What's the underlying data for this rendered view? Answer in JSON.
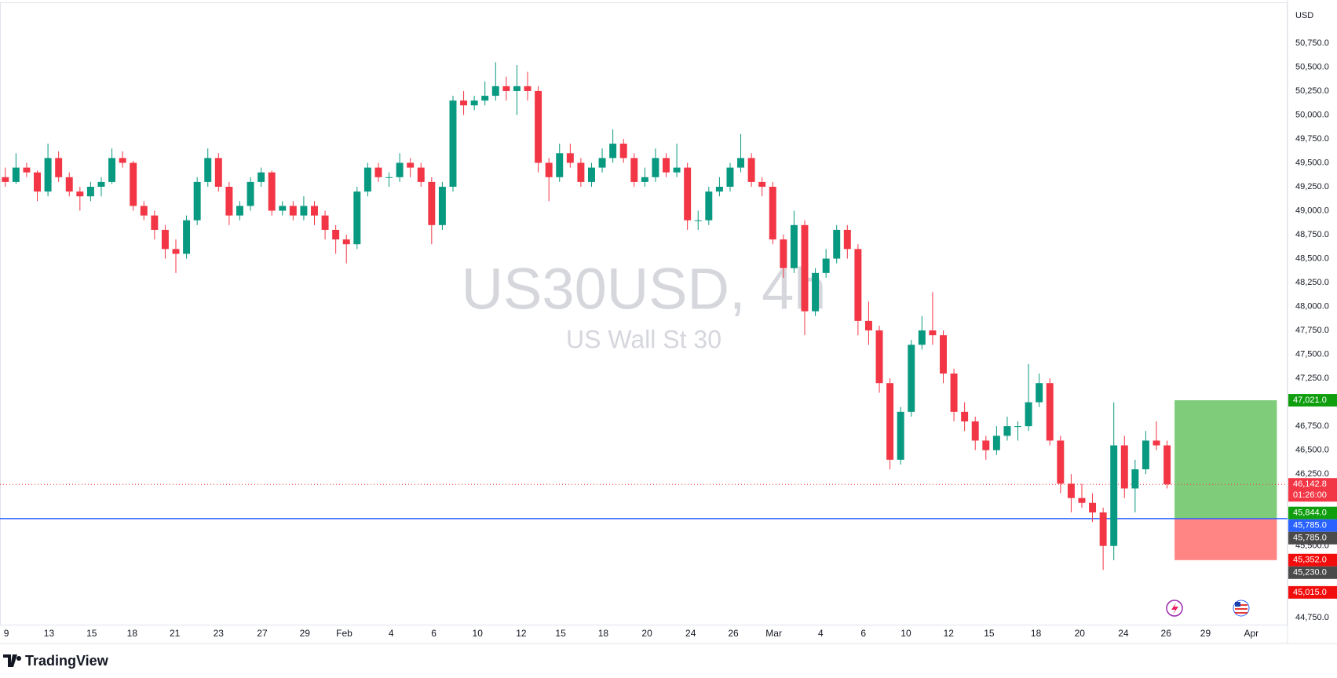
{
  "chart_data": {
    "type": "candlestick",
    "title": "US30USD, 4h",
    "subtitle": "US Wall St 30",
    "currency": "USD",
    "up_color": "#089981",
    "down_color": "#f23645",
    "xlim": [
      -0.5,
      120.3
    ],
    "xticks": [
      {
        "value": 0.1,
        "label": "9"
      },
      {
        "value": 4.1,
        "label": "13"
      },
      {
        "value": 8.1,
        "label": "15"
      },
      {
        "value": 11.9,
        "label": "18"
      },
      {
        "value": 15.9,
        "label": "21"
      },
      {
        "value": 20,
        "label": "23"
      },
      {
        "value": 24.1,
        "label": "27"
      },
      {
        "value": 28.1,
        "label": "29"
      },
      {
        "value": 31.8,
        "label": "Feb"
      },
      {
        "value": 36.2,
        "label": "4"
      },
      {
        "value": 40.2,
        "label": "6"
      },
      {
        "value": 44.3,
        "label": "10"
      },
      {
        "value": 48.4,
        "label": "12"
      },
      {
        "value": 52.1,
        "label": "15"
      },
      {
        "value": 56.1,
        "label": "18"
      },
      {
        "value": 60.2,
        "label": "20"
      },
      {
        "value": 64.3,
        "label": "24"
      },
      {
        "value": 68.3,
        "label": "26"
      },
      {
        "value": 72.1,
        "label": "Mar"
      },
      {
        "value": 76.5,
        "label": "4"
      },
      {
        "value": 80.5,
        "label": "6"
      },
      {
        "value": 84.5,
        "label": "10"
      },
      {
        "value": 88.5,
        "label": "12"
      },
      {
        "value": 92.3,
        "label": "15"
      },
      {
        "value": 96.7,
        "label": "18"
      },
      {
        "value": 100.8,
        "label": "20"
      },
      {
        "value": 104.9,
        "label": "24"
      },
      {
        "value": 108.9,
        "label": "26"
      },
      {
        "value": 112.6,
        "label": "29"
      },
      {
        "value": 116.9,
        "label": "Apr"
      }
    ],
    "ylim": [
      44670,
      51200
    ],
    "yticks": [
      {
        "value": 50750,
        "label": "50,750.0"
      },
      {
        "value": 50500,
        "label": "50,500.0"
      },
      {
        "value": 50250,
        "label": "50,250.0"
      },
      {
        "value": 50000,
        "label": "50,000.0"
      },
      {
        "value": 49750,
        "label": "49,750.0"
      },
      {
        "value": 49500,
        "label": "49,500.0"
      },
      {
        "value": 49250,
        "label": "49,250.0"
      },
      {
        "value": 49000,
        "label": "49,000.0"
      },
      {
        "value": 48750,
        "label": "48,750.0"
      },
      {
        "value": 48500,
        "label": "48,500.0"
      },
      {
        "value": 48250,
        "label": "48,250.0"
      },
      {
        "value": 48000,
        "label": "48,000.0"
      },
      {
        "value": 47750,
        "label": "47,750.0"
      },
      {
        "value": 47500,
        "label": "47,500.0"
      },
      {
        "value": 47250,
        "label": "47,250.0"
      },
      {
        "value": 46750,
        "label": "46,750.0"
      },
      {
        "value": 46500,
        "label": "46,500.0"
      },
      {
        "value": 46250,
        "label": "46,250.0"
      },
      {
        "value": 45500,
        "label": "45,500.0"
      },
      {
        "value": 44750,
        "label": "44,750.0"
      }
    ],
    "ohlc": [
      [
        49350,
        49450,
        49250,
        49300
      ],
      [
        49300,
        49600,
        49280,
        49450
      ],
      [
        49450,
        49500,
        49350,
        49400
      ],
      [
        49400,
        49420,
        49100,
        49200
      ],
      [
        49200,
        49700,
        49150,
        49550
      ],
      [
        49550,
        49620,
        49300,
        49350
      ],
      [
        49350,
        49400,
        49150,
        49200
      ],
      [
        49200,
        49250,
        49000,
        49150
      ],
      [
        49150,
        49300,
        49100,
        49250
      ],
      [
        49250,
        49350,
        49150,
        49300
      ],
      [
        49300,
        49650,
        49280,
        49550
      ],
      [
        49550,
        49620,
        49450,
        49500
      ],
      [
        49500,
        49520,
        49000,
        49050
      ],
      [
        49050,
        49100,
        48900,
        48950
      ],
      [
        48950,
        49000,
        48700,
        48800
      ],
      [
        48800,
        48850,
        48500,
        48600
      ],
      [
        48600,
        48700,
        48350,
        48550
      ],
      [
        48550,
        48950,
        48500,
        48900
      ],
      [
        48900,
        49350,
        48850,
        49300
      ],
      [
        49300,
        49650,
        49250,
        49550
      ],
      [
        49550,
        49600,
        49200,
        49250
      ],
      [
        49250,
        49300,
        48850,
        48950
      ],
      [
        48950,
        49100,
        48900,
        49050
      ],
      [
        49050,
        49350,
        49000,
        49300
      ],
      [
        49300,
        49450,
        49250,
        49400
      ],
      [
        49400,
        49420,
        48950,
        49000
      ],
      [
        49000,
        49100,
        48950,
        49050
      ],
      [
        49050,
        49100,
        48900,
        48950
      ],
      [
        48950,
        49150,
        48900,
        49050
      ],
      [
        49050,
        49100,
        48850,
        48950
      ],
      [
        48950,
        49000,
        48700,
        48800
      ],
      [
        48800,
        48850,
        48550,
        48700
      ],
      [
        48700,
        48750,
        48450,
        48650
      ],
      [
        48650,
        49250,
        48600,
        49200
      ],
      [
        49200,
        49500,
        49150,
        49450
      ],
      [
        49450,
        49500,
        49300,
        49350
      ],
      [
        49350,
        49400,
        49250,
        49350
      ],
      [
        49350,
        49600,
        49300,
        49500
      ],
      [
        49500,
        49550,
        49350,
        49450
      ],
      [
        49450,
        49500,
        49250,
        49300
      ],
      [
        49300,
        49350,
        48650,
        48850
      ],
      [
        48850,
        49300,
        48800,
        49250
      ],
      [
        49250,
        50200,
        49200,
        50150
      ],
      [
        50150,
        50250,
        50000,
        50100
      ],
      [
        50100,
        50200,
        50050,
        50150
      ],
      [
        50150,
        50350,
        50100,
        50200
      ],
      [
        50200,
        50550,
        50150,
        50300
      ],
      [
        50300,
        50400,
        50150,
        50250
      ],
      [
        50250,
        50520,
        50000,
        50300
      ],
      [
        50300,
        50450,
        50150,
        50250
      ],
      [
        50250,
        50300,
        49400,
        49500
      ],
      [
        49500,
        49550,
        49100,
        49350
      ],
      [
        49350,
        49700,
        49300,
        49600
      ],
      [
        49600,
        49700,
        49450,
        49500
      ],
      [
        49500,
        49550,
        49250,
        49300
      ],
      [
        49300,
        49500,
        49250,
        49450
      ],
      [
        49450,
        49650,
        49400,
        49550
      ],
      [
        49550,
        49850,
        49500,
        49700
      ],
      [
        49700,
        49750,
        49500,
        49550
      ],
      [
        49550,
        49600,
        49250,
        49300
      ],
      [
        49300,
        49450,
        49250,
        49350
      ],
      [
        49350,
        49650,
        49300,
        49550
      ],
      [
        49550,
        49600,
        49350,
        49400
      ],
      [
        49400,
        49700,
        49350,
        49450
      ],
      [
        49450,
        49500,
        48800,
        48900
      ],
      [
        48900,
        49000,
        48800,
        48900
      ],
      [
        48900,
        49250,
        48850,
        49200
      ],
      [
        49200,
        49350,
        49150,
        49250
      ],
      [
        49250,
        49500,
        49200,
        49450
      ],
      [
        49450,
        49800,
        49400,
        49550
      ],
      [
        49550,
        49600,
        49250,
        49300
      ],
      [
        49300,
        49350,
        49150,
        49250
      ],
      [
        49250,
        49300,
        48650,
        48700
      ],
      [
        48700,
        48750,
        48300,
        48400
      ],
      [
        48400,
        49000,
        48350,
        48850
      ],
      [
        48850,
        48900,
        47700,
        47950
      ],
      [
        47950,
        48400,
        47900,
        48350
      ],
      [
        48350,
        48600,
        48300,
        48500
      ],
      [
        48500,
        48850,
        48450,
        48800
      ],
      [
        48800,
        48850,
        48500,
        48600
      ],
      [
        48600,
        48650,
        47700,
        47850
      ],
      [
        47850,
        48050,
        47600,
        47750
      ],
      [
        47750,
        47800,
        47100,
        47200
      ],
      [
        47200,
        47250,
        46300,
        46400
      ],
      [
        46400,
        46950,
        46350,
        46900
      ],
      [
        46900,
        47650,
        46850,
        47600
      ],
      [
        47600,
        47900,
        47550,
        47750
      ],
      [
        47750,
        48150,
        47600,
        47700
      ],
      [
        47700,
        47750,
        47200,
        47300
      ],
      [
        47300,
        47350,
        46800,
        46900
      ],
      [
        46900,
        47000,
        46700,
        46800
      ],
      [
        46800,
        46850,
        46500,
        46600
      ],
      [
        46600,
        46650,
        46400,
        46500
      ],
      [
        46500,
        46750,
        46450,
        46650
      ],
      [
        46650,
        46850,
        46600,
        46750
      ],
      [
        46750,
        46800,
        46600,
        46750
      ],
      [
        46750,
        47400,
        46700,
        47000
      ],
      [
        47000,
        47300,
        46950,
        47200
      ],
      [
        47200,
        47250,
        46550,
        46600
      ],
      [
        46600,
        46650,
        46050,
        46150
      ],
      [
        46150,
        46250,
        45850,
        46000
      ],
      [
        46000,
        46150,
        45900,
        45950
      ],
      [
        45950,
        46050,
        45750,
        45850
      ],
      [
        45850,
        45900,
        45250,
        45500
      ],
      [
        45500,
        47000,
        45350,
        46550
      ],
      [
        46550,
        46650,
        46000,
        46100
      ],
      [
        46100,
        46400,
        45850,
        46300
      ],
      [
        46300,
        46700,
        46250,
        46600
      ],
      [
        46600,
        46800,
        46500,
        46550
      ],
      [
        46550,
        46600,
        46100,
        46142.8
      ]
    ],
    "current_price": {
      "value": 46142.8,
      "label": "46,142.8",
      "countdown": "01:26:00",
      "color": "#f23645"
    },
    "horizontal_line": {
      "value": 45785,
      "label": "45,785.0",
      "color": "#2962ff"
    },
    "position": {
      "xrange": [
        109.7,
        119.3
      ],
      "profit_color": "#7fcd7b",
      "loss_color": "#ff8585",
      "target": {
        "value": 47021,
        "label": "47,021.0",
        "color": "#0e9e0e"
      },
      "entry": {
        "value": 45785,
        "label": "45,785.0",
        "color": "#4a4a4a"
      },
      "stop": {
        "value": 45352,
        "label": "45,352.0",
        "color": "#f20d0d"
      }
    },
    "price_labels": [
      {
        "value": 45844,
        "label": "45,844.0",
        "color": "#0e9e0e"
      },
      {
        "value": 45230,
        "label": "45,230.0",
        "color": "#4a4a4a"
      },
      {
        "value": 45015,
        "label": "45,015.0",
        "color": "#f20d0d"
      }
    ]
  },
  "branding": "TradingView"
}
